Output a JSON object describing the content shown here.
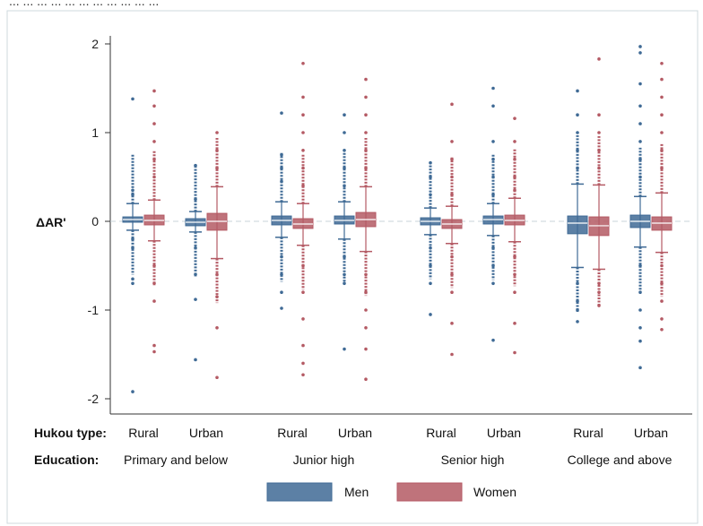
{
  "header_text": "... ... ... ... ... ... ... ... ... ... ...",
  "chart_data": {
    "type": "box",
    "ylabel": "ΔAR'",
    "ylim": [
      -2.2,
      2.0
    ],
    "yticks": [
      -2,
      -1,
      0,
      1,
      2
    ],
    "y_tick_labels": [
      "-2",
      "-1",
      "0",
      "1",
      "2"
    ],
    "reference_line": 0,
    "row_labels": {
      "hukou": "Hukou type:",
      "education": "Education:"
    },
    "education_groups": [
      "Primary and below",
      "Junior high",
      "Senior high",
      "College and above"
    ],
    "hukou_types": [
      "Rural",
      "Urban"
    ],
    "series": [
      {
        "name": "Men",
        "color": "#3f6a95"
      },
      {
        "name": "Women",
        "color": "#b45a64"
      }
    ],
    "boxes": [
      {
        "education": "Primary and below",
        "hukou": "Rural",
        "sex": "Men",
        "whisker_low": -0.1,
        "q1": -0.01,
        "median": 0.02,
        "q3": 0.05,
        "whisker_high": 0.2,
        "outliers": [
          1.38,
          -0.65,
          -0.7,
          -1.92,
          0.35,
          0.3,
          -0.2,
          -0.3
        ]
      },
      {
        "education": "Primary and below",
        "hukou": "Rural",
        "sex": "Women",
        "whisker_low": -0.22,
        "q1": -0.04,
        "median": 0.01,
        "q3": 0.07,
        "whisker_high": 0.24,
        "outliers": [
          1.47,
          1.3,
          1.1,
          0.9,
          0.7,
          0.5,
          -0.5,
          -0.7,
          -0.9,
          -1.4,
          -1.47
        ]
      },
      {
        "education": "Primary and below",
        "hukou": "Urban",
        "sex": "Men",
        "whisker_low": -0.12,
        "q1": -0.05,
        "median": -0.01,
        "q3": 0.03,
        "whisker_high": 0.11,
        "outliers": [
          0.63,
          0.25,
          -0.3,
          -0.6,
          -0.88,
          -1.56
        ]
      },
      {
        "education": "Primary and below",
        "hukou": "Urban",
        "sex": "Women",
        "whisker_low": -0.42,
        "q1": -0.1,
        "median": 0.0,
        "q3": 0.09,
        "whisker_high": 0.39,
        "outliers": [
          1.0,
          0.8,
          0.6,
          -0.6,
          -0.85,
          -1.2,
          -1.76
        ]
      },
      {
        "education": "Junior high",
        "hukou": "Rural",
        "sex": "Men",
        "whisker_low": -0.18,
        "q1": -0.04,
        "median": 0.01,
        "q3": 0.06,
        "whisker_high": 0.22,
        "outliers": [
          1.22,
          0.75,
          0.6,
          0.45,
          -0.4,
          -0.6,
          -0.8,
          -0.98
        ]
      },
      {
        "education": "Junior high",
        "hukou": "Rural",
        "sex": "Women",
        "whisker_low": -0.27,
        "q1": -0.08,
        "median": -0.03,
        "q3": 0.03,
        "whisker_high": 0.2,
        "outliers": [
          1.78,
          1.4,
          1.2,
          1.0,
          0.8,
          0.6,
          0.4,
          -0.5,
          -0.8,
          -1.1,
          -1.4,
          -1.6,
          -1.73
        ]
      },
      {
        "education": "Junior high",
        "hukou": "Urban",
        "sex": "Men",
        "whisker_low": -0.2,
        "q1": -0.03,
        "median": 0.01,
        "q3": 0.06,
        "whisker_high": 0.22,
        "outliers": [
          1.2,
          1.0,
          0.8,
          0.6,
          0.4,
          -0.4,
          -0.6,
          -0.7,
          -1.44
        ]
      },
      {
        "education": "Junior high",
        "hukou": "Urban",
        "sex": "Women",
        "whisker_low": -0.34,
        "q1": -0.06,
        "median": 0.02,
        "q3": 0.1,
        "whisker_high": 0.39,
        "outliers": [
          1.6,
          1.4,
          1.2,
          1.0,
          0.8,
          0.6,
          -0.6,
          -0.8,
          -1.0,
          -1.2,
          -1.44,
          -1.78
        ]
      },
      {
        "education": "Senior high",
        "hukou": "Rural",
        "sex": "Men",
        "whisker_low": -0.15,
        "q1": -0.04,
        "median": 0.0,
        "q3": 0.04,
        "whisker_high": 0.15,
        "outliers": [
          0.66,
          0.5,
          0.3,
          -0.3,
          -0.5,
          -0.7,
          -1.05
        ]
      },
      {
        "education": "Senior high",
        "hukou": "Rural",
        "sex": "Women",
        "whisker_low": -0.25,
        "q1": -0.08,
        "median": -0.03,
        "q3": 0.02,
        "whisker_high": 0.17,
        "outliers": [
          1.32,
          0.9,
          0.7,
          0.5,
          0.3,
          -0.4,
          -0.6,
          -0.8,
          -1.15,
          -1.5
        ]
      },
      {
        "education": "Senior high",
        "hukou": "Urban",
        "sex": "Men",
        "whisker_low": -0.16,
        "q1": -0.03,
        "median": 0.02,
        "q3": 0.06,
        "whisker_high": 0.2,
        "outliers": [
          1.5,
          1.3,
          0.9,
          0.7,
          0.5,
          0.3,
          -0.3,
          -0.5,
          -0.7,
          -1.34
        ]
      },
      {
        "education": "Senior high",
        "hukou": "Urban",
        "sex": "Women",
        "whisker_low": -0.23,
        "q1": -0.04,
        "median": 0.01,
        "q3": 0.07,
        "whisker_high": 0.26,
        "outliers": [
          1.16,
          0.9,
          0.7,
          0.5,
          0.35,
          -0.4,
          -0.6,
          -0.8,
          -1.15,
          -1.48
        ]
      },
      {
        "education": "College and above",
        "hukou": "Rural",
        "sex": "Men",
        "whisker_low": -0.52,
        "q1": -0.14,
        "median": -0.02,
        "q3": 0.06,
        "whisker_high": 0.42,
        "outliers": [
          1.47,
          1.2,
          1.0,
          0.8,
          0.6,
          -0.7,
          -0.9,
          -1.0,
          -1.13
        ]
      },
      {
        "education": "College and above",
        "hukou": "Rural",
        "sex": "Women",
        "whisker_low": -0.54,
        "q1": -0.16,
        "median": -0.05,
        "q3": 0.05,
        "whisker_high": 0.41,
        "outliers": [
          1.83,
          1.2,
          1.0,
          0.8,
          0.6,
          -0.7,
          -0.8,
          -0.95
        ]
      },
      {
        "education": "College and above",
        "hukou": "Urban",
        "sex": "Men",
        "whisker_low": -0.29,
        "q1": -0.07,
        "median": 0.0,
        "q3": 0.07,
        "whisker_high": 0.28,
        "outliers": [
          1.97,
          1.9,
          1.55,
          1.3,
          1.1,
          0.9,
          0.7,
          0.5,
          -0.5,
          -0.8,
          -1.0,
          -1.2,
          -1.35,
          -1.65
        ]
      },
      {
        "education": "College and above",
        "hukou": "Urban",
        "sex": "Women",
        "whisker_low": -0.35,
        "q1": -0.1,
        "median": -0.02,
        "q3": 0.05,
        "whisker_high": 0.32,
        "outliers": [
          1.78,
          1.6,
          1.4,
          1.2,
          1.0,
          0.8,
          0.6,
          -0.5,
          -0.7,
          -0.9,
          -1.1,
          -1.22
        ]
      }
    ]
  }
}
